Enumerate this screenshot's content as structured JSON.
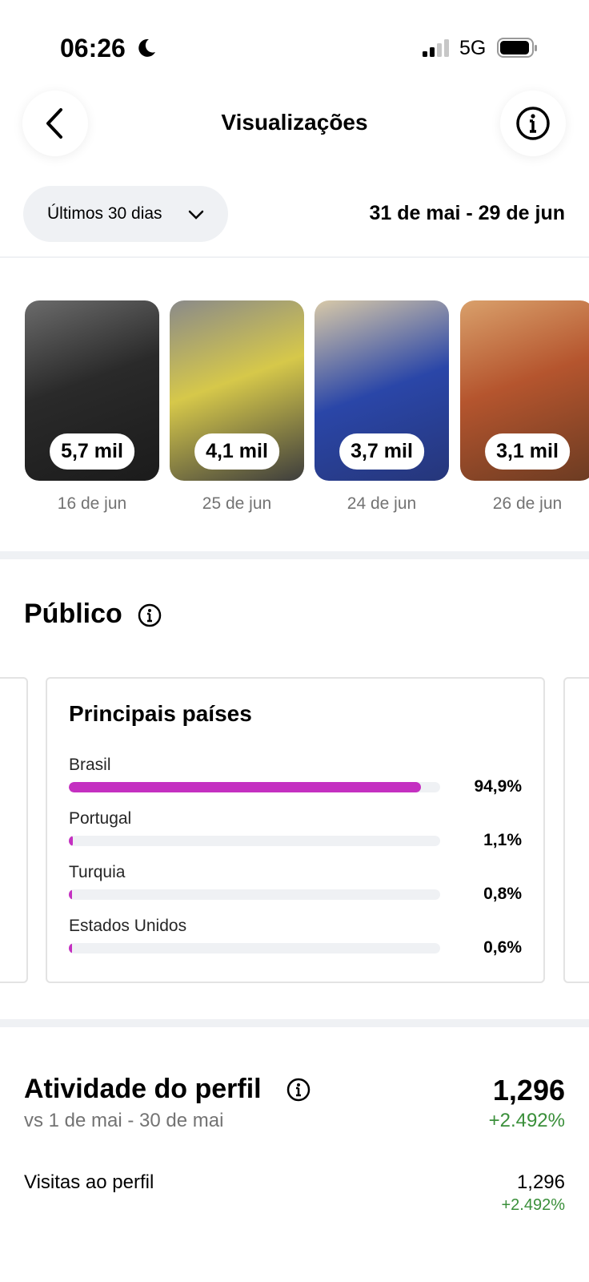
{
  "status_bar": {
    "time": "06:26",
    "network": "5G"
  },
  "header": {
    "title": "Visualizações"
  },
  "filter": {
    "period": "Últimos 30 dias",
    "date_range": "31 de mai - 29 de jun"
  },
  "stories": [
    {
      "views": "5,7 mil",
      "date": "16 de jun"
    },
    {
      "views": "4,1 mil",
      "date": "25 de jun"
    },
    {
      "views": "3,7 mil",
      "date": "24 de jun"
    },
    {
      "views": "3,1 mil",
      "date": "26 de jun"
    }
  ],
  "audience": {
    "title": "Público",
    "card_title": "Principais países",
    "countries": [
      {
        "name": "Brasil",
        "value": 94.9,
        "label": "94,9%"
      },
      {
        "name": "Portugal",
        "value": 1.1,
        "label": "1,1%"
      },
      {
        "name": "Turquia",
        "value": 0.8,
        "label": "0,8%"
      },
      {
        "name": "Estados Unidos",
        "value": 0.6,
        "label": "0,6%"
      }
    ]
  },
  "activity": {
    "title": "Atividade do perfil",
    "total": "1,296",
    "total_change": "+2.492%",
    "comparison": "vs 1 de mai - 30 de mai",
    "rows": [
      {
        "label": "Visitas ao perfil",
        "value": "1,296",
        "change": "+2.492%"
      }
    ]
  }
}
